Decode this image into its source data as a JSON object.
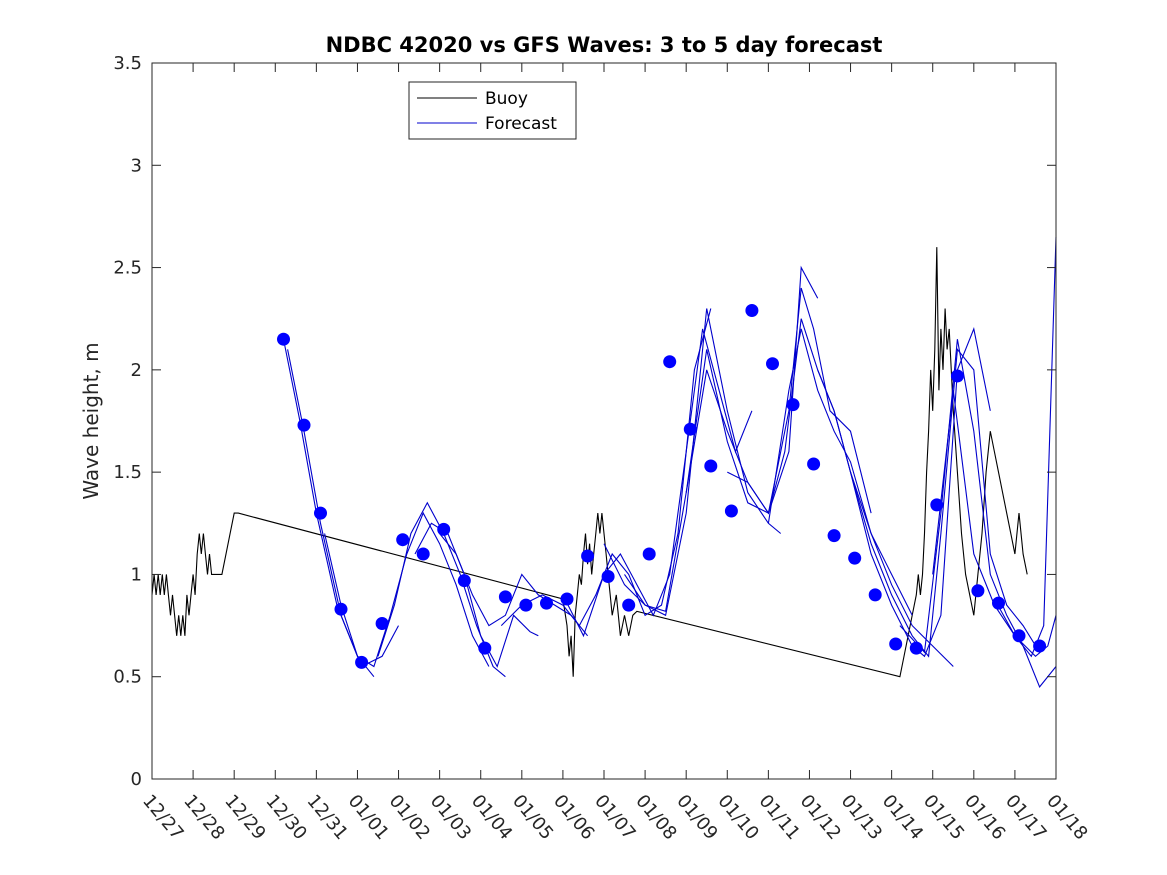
{
  "chart_data": {
    "type": "line",
    "title": "NDBC 42020 vs GFS Waves: 3 to 5 day forecast",
    "xlabel": "",
    "ylabel": "Wave height, m",
    "xlim": [
      0,
      22
    ],
    "ylim": [
      0,
      3.5
    ],
    "grid": false,
    "legend_location": "top-left",
    "x_tick_labels": [
      "12/27",
      "12/28",
      "12/29",
      "12/30",
      "12/31",
      "01/01",
      "01/02",
      "01/03",
      "01/04",
      "01/05",
      "01/06",
      "01/07",
      "01/08",
      "01/09",
      "01/10",
      "01/11",
      "01/12",
      "01/13",
      "01/14",
      "01/15",
      "01/16",
      "01/17",
      "01/18"
    ],
    "y_ticks": [
      0,
      0.5,
      1,
      1.5,
      2,
      2.5,
      3,
      3.5
    ],
    "y_tick_labels": [
      "0",
      "0.5",
      "1",
      "1.5",
      "2",
      "2.5",
      "3",
      "3.5"
    ],
    "series": [
      {
        "name": "Buoy",
        "color": "#000000",
        "x": [
          0.0,
          0.05,
          0.1,
          0.15,
          0.2,
          0.25,
          0.3,
          0.35,
          0.4,
          0.45,
          0.5,
          0.55,
          0.6,
          0.65,
          0.7,
          0.75,
          0.8,
          0.85,
          0.9,
          0.95,
          1.0,
          1.05,
          1.1,
          1.15,
          1.2,
          1.25,
          1.3,
          1.35,
          1.4,
          1.45,
          1.5,
          1.6,
          1.7,
          1.8,
          1.9,
          2.0,
          2.1,
          10.0,
          10.1,
          10.15,
          10.2,
          10.25,
          10.3,
          10.35,
          10.4,
          10.45,
          10.5,
          10.55,
          10.6,
          10.65,
          10.7,
          10.75,
          10.8,
          10.85,
          10.9,
          10.95,
          11.0,
          11.05,
          11.1,
          11.15,
          11.2,
          11.3,
          11.4,
          11.5,
          11.6,
          11.7,
          11.8,
          18.2,
          18.3,
          18.4,
          18.5,
          18.6,
          18.65,
          18.7,
          18.75,
          18.8,
          18.85,
          18.9,
          18.95,
          19.0,
          19.05,
          19.1,
          19.15,
          19.2,
          19.25,
          19.3,
          19.35,
          19.4,
          19.5,
          19.6,
          19.7,
          19.8,
          20.0,
          20.1,
          20.2,
          20.3,
          20.4,
          20.5,
          20.6,
          20.7,
          20.8,
          20.9,
          21.0,
          21.1,
          21.2,
          21.3
        ],
        "y": [
          0.9,
          1.0,
          0.9,
          1.0,
          0.9,
          1.0,
          0.9,
          1.0,
          0.9,
          0.8,
          0.9,
          0.8,
          0.7,
          0.8,
          0.7,
          0.8,
          0.7,
          0.9,
          0.8,
          0.9,
          1.0,
          0.9,
          1.1,
          1.2,
          1.1,
          1.2,
          1.1,
          1.0,
          1.1,
          1.0,
          1.0,
          1.0,
          1.0,
          1.1,
          1.2,
          1.3,
          1.3,
          0.88,
          0.75,
          0.6,
          0.7,
          0.5,
          0.8,
          0.9,
          1.0,
          0.95,
          1.1,
          1.2,
          1.05,
          1.15,
          1.0,
          1.1,
          1.2,
          1.3,
          1.2,
          1.3,
          1.2,
          1.1,
          1.0,
          0.9,
          0.8,
          0.9,
          0.7,
          0.8,
          0.7,
          0.8,
          0.82,
          0.5,
          0.6,
          0.7,
          0.8,
          0.9,
          1.0,
          0.9,
          1.0,
          1.2,
          1.5,
          1.7,
          2.0,
          1.8,
          2.1,
          2.6,
          1.9,
          2.2,
          2.0,
          2.3,
          2.1,
          2.2,
          1.8,
          1.5,
          1.2,
          1.0,
          0.8,
          1.0,
          1.2,
          1.5,
          1.7,
          1.6,
          1.5,
          1.4,
          1.3,
          1.2,
          1.1,
          1.3,
          1.1,
          1.0
        ]
      },
      {
        "name": "Forecast",
        "color": "#0000cc",
        "lines": [
          {
            "x": [
              3.2,
              3.6,
              4.0,
              4.5,
              5.0,
              5.4
            ],
            "y": [
              2.15,
              1.75,
              1.3,
              0.85,
              0.6,
              0.5
            ]
          },
          {
            "x": [
              3.3,
              3.7,
              4.1,
              4.6,
              5.1,
              5.6,
              6.0
            ],
            "y": [
              2.1,
              1.7,
              1.25,
              0.8,
              0.55,
              0.6,
              0.75
            ]
          },
          {
            "x": [
              4.2,
              4.6,
              5.0,
              5.4,
              5.8,
              6.2,
              6.6,
              7.0,
              7.4,
              7.8,
              8.2
            ],
            "y": [
              1.2,
              0.85,
              0.6,
              0.55,
              0.8,
              1.1,
              1.3,
              1.15,
              0.95,
              0.7,
              0.55
            ]
          },
          {
            "x": [
              5.5,
              5.9,
              6.3,
              6.7,
              7.1,
              7.5,
              7.9,
              8.3,
              8.6
            ],
            "y": [
              0.6,
              0.85,
              1.2,
              1.35,
              1.2,
              1.0,
              0.75,
              0.55,
              0.5
            ]
          },
          {
            "x": [
              6.4,
              6.8,
              7.2,
              7.6,
              8.0,
              8.4,
              8.8,
              9.2,
              9.4
            ],
            "y": [
              1.1,
              1.25,
              1.2,
              1.0,
              0.7,
              0.55,
              0.8,
              0.72,
              0.7
            ]
          },
          {
            "x": [
              7.0,
              7.4,
              7.8,
              8.2,
              8.6,
              9.0,
              9.4,
              9.8,
              10.2,
              10.6
            ],
            "y": [
              1.2,
              1.1,
              0.9,
              0.75,
              0.8,
              1.0,
              0.9,
              0.85,
              0.8,
              0.7
            ]
          },
          {
            "x": [
              8.5,
              9.0,
              9.5,
              10.0,
              10.4,
              10.8,
              11.2,
              11.6,
              12.0,
              12.4,
              12.8,
              13.2,
              13.6
            ],
            "y": [
              0.75,
              0.85,
              0.9,
              0.85,
              0.75,
              0.9,
              1.1,
              1.0,
              0.8,
              0.85,
              1.2,
              2.0,
              2.3
            ]
          },
          {
            "x": [
              10.0,
              10.5,
              11.0,
              11.4,
              11.8,
              12.2,
              12.6,
              13.0,
              13.4,
              13.8,
              14.2,
              14.6
            ],
            "y": [
              0.9,
              0.7,
              1.0,
              1.1,
              0.95,
              0.8,
              1.0,
              1.6,
              2.2,
              1.9,
              1.6,
              1.8
            ]
          },
          {
            "x": [
              11.0,
              11.5,
              12.0,
              12.5,
              13.0,
              13.5,
              14.0,
              14.5,
              15.0,
              15.3
            ],
            "y": [
              1.15,
              0.95,
              0.85,
              0.8,
              1.3,
              2.3,
              1.8,
              1.4,
              1.25,
              1.2
            ]
          },
          {
            "x": [
              11.5,
              12.0,
              12.5,
              13.0,
              13.5,
              14.0,
              14.5,
              15.0,
              15.5,
              15.8,
              16.2
            ],
            "y": [
              1.0,
              0.85,
              0.82,
              1.4,
              2.1,
              1.65,
              1.35,
              1.3,
              1.6,
              2.5,
              2.35
            ]
          },
          {
            "x": [
              13.0,
              13.5,
              14.0,
              14.5,
              15.0,
              15.5,
              15.8,
              16.1,
              16.5,
              17.0,
              17.5
            ],
            "y": [
              1.4,
              2.0,
              1.7,
              1.45,
              1.3,
              1.8,
              2.4,
              2.2,
              1.8,
              1.7,
              1.3
            ]
          },
          {
            "x": [
              14.0,
              14.5,
              15.0,
              15.4,
              15.8,
              16.2,
              16.6,
              17.0,
              17.5,
              18.0,
              18.5
            ],
            "y": [
              1.5,
              1.45,
              1.3,
              1.6,
              2.25,
              2.0,
              1.8,
              1.5,
              1.2,
              1.0,
              0.8
            ]
          },
          {
            "x": [
              15.0,
              15.5,
              15.8,
              16.2,
              16.6,
              17.0,
              17.5,
              18.0,
              18.5,
              19.0,
              19.5
            ],
            "y": [
              1.25,
              1.9,
              2.2,
              1.9,
              1.7,
              1.55,
              1.2,
              0.95,
              0.75,
              0.65,
              0.55
            ]
          },
          {
            "x": [
              16.2,
              16.6,
              17.0,
              17.5,
              18.0,
              18.5,
              18.8,
              19.2,
              19.6,
              20.0,
              20.4
            ],
            "y": [
              2.0,
              1.8,
              1.5,
              1.1,
              0.85,
              0.65,
              0.6,
              0.8,
              2.0,
              2.2,
              1.8
            ]
          },
          {
            "x": [
              17.0,
              17.5,
              18.0,
              18.5,
              18.9,
              19.2,
              19.6,
              20.0,
              20.4,
              20.8,
              21.2,
              21.6
            ],
            "y": [
              1.5,
              1.15,
              0.9,
              0.7,
              0.6,
              1.2,
              2.1,
              2.0,
              1.1,
              0.85,
              0.75,
              0.62
            ]
          },
          {
            "x": [
              18.2,
              18.8,
              19.2,
              19.6,
              20.0,
              20.4,
              20.8,
              21.2,
              21.6,
              22.0
            ],
            "y": [
              0.75,
              0.62,
              1.3,
              2.15,
              1.7,
              1.0,
              0.8,
              0.65,
              0.45,
              0.55
            ]
          },
          {
            "x": [
              19.0,
              19.5,
              20.0,
              20.5,
              21.0,
              21.5,
              21.8,
              22.0
            ],
            "y": [
              1.0,
              1.9,
              1.1,
              0.85,
              0.7,
              0.6,
              0.65,
              0.8
            ]
          },
          {
            "x": [
              20.5,
              21.0,
              21.4,
              21.7,
              22.0
            ],
            "y": [
              0.88,
              0.7,
              0.6,
              0.75,
              2.65
            ]
          }
        ],
        "markers": {
          "x": [
            3.2,
            3.7,
            4.1,
            4.6,
            5.1,
            5.6,
            6.1,
            6.6,
            7.1,
            7.6,
            8.1,
            8.6,
            9.1,
            9.6,
            10.1,
            10.6,
            11.1,
            11.6,
            12.1,
            12.6,
            13.1,
            13.6,
            14.1,
            14.6,
            15.1,
            15.6,
            16.1,
            16.6,
            17.1,
            17.6,
            18.1,
            18.6,
            19.1,
            19.6,
            20.1,
            20.6,
            21.1,
            21.6
          ],
          "y": [
            2.15,
            1.73,
            1.3,
            0.83,
            0.57,
            0.76,
            1.17,
            1.1,
            1.22,
            0.97,
            0.64,
            0.89,
            0.85,
            0.86,
            0.88,
            1.09,
            0.99,
            0.85,
            1.1,
            2.04,
            1.71,
            1.53,
            1.31,
            2.29,
            2.03,
            1.83,
            1.54,
            1.19,
            1.08,
            0.9,
            0.66,
            0.64,
            1.34,
            1.97,
            0.92,
            0.86,
            0.7,
            0.65
          ]
        }
      }
    ]
  }
}
